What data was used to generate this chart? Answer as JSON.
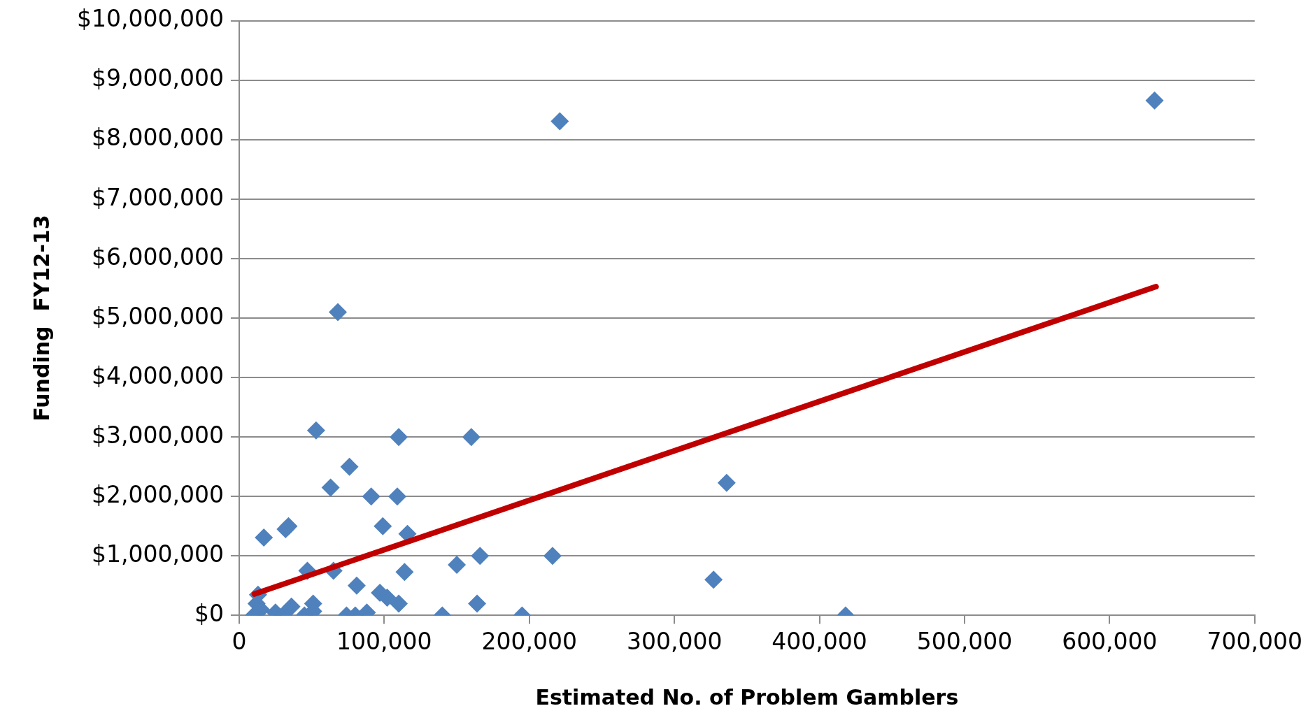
{
  "chart_data": {
    "type": "scatter",
    "xlabel": "Estimated No. of Problem Gamblers",
    "ylabel": "Funding  FY12-13",
    "xlim": [
      0,
      700000
    ],
    "ylim": [
      0,
      10000000
    ],
    "xticks": [
      {
        "value": 0,
        "label": "0"
      },
      {
        "value": 100000,
        "label": "100,000"
      },
      {
        "value": 200000,
        "label": "200,000"
      },
      {
        "value": 300000,
        "label": "300,000"
      },
      {
        "value": 400000,
        "label": "400,000"
      },
      {
        "value": 500000,
        "label": "500,000"
      },
      {
        "value": 600000,
        "label": "600,000"
      },
      {
        "value": 700000,
        "label": "700,000"
      }
    ],
    "yticks": [
      {
        "value": 0,
        "label": "$0"
      },
      {
        "value": 1000000,
        "label": "$1,000,000"
      },
      {
        "value": 2000000,
        "label": "$2,000,000"
      },
      {
        "value": 3000000,
        "label": "$3,000,000"
      },
      {
        "value": 4000000,
        "label": "$4,000,000"
      },
      {
        "value": 5000000,
        "label": "$5,000,000"
      },
      {
        "value": 6000000,
        "label": "$6,000,000"
      },
      {
        "value": 7000000,
        "label": "$7,000,000"
      },
      {
        "value": 8000000,
        "label": "$8,000,000"
      },
      {
        "value": 9000000,
        "label": "$9,000,000"
      },
      {
        "value": 10000000,
        "label": "$10,000,000"
      }
    ],
    "grid": "y",
    "legend": false,
    "marker": "diamond",
    "series": [
      {
        "color": "#4f81bd",
        "x": [
          631000,
          221000,
          68000,
          53000,
          110000,
          160000,
          76000,
          63000,
          91000,
          109000,
          336000,
          32000,
          34000,
          17000,
          99000,
          116000,
          166000,
          216000,
          47000,
          65000,
          114000,
          150000,
          81000,
          327000,
          97000,
          102000,
          110000,
          36000,
          51000,
          164000,
          74000,
          80000,
          88000,
          140000,
          195000,
          418000,
          45000,
          51000,
          13000,
          12000,
          10000,
          15000,
          25000,
          30000
        ],
        "values": [
          8660000,
          8310000,
          5100000,
          3110000,
          3000000,
          3000000,
          2500000,
          2150000,
          2000000,
          2000000,
          2230000,
          1450000,
          1500000,
          1310000,
          1500000,
          1370000,
          1000000,
          1000000,
          750000,
          750000,
          730000,
          850000,
          500000,
          600000,
          380000,
          300000,
          200000,
          150000,
          200000,
          200000,
          0,
          0,
          50000,
          0,
          0,
          0,
          0,
          70000,
          350000,
          200000,
          0,
          100000,
          50000,
          0
        ]
      },
      {
        "type": "line",
        "marker": "none",
        "color": "#c00000",
        "x": [
          10500,
          632000
        ],
        "values": [
          360000,
          5530000
        ]
      }
    ]
  }
}
